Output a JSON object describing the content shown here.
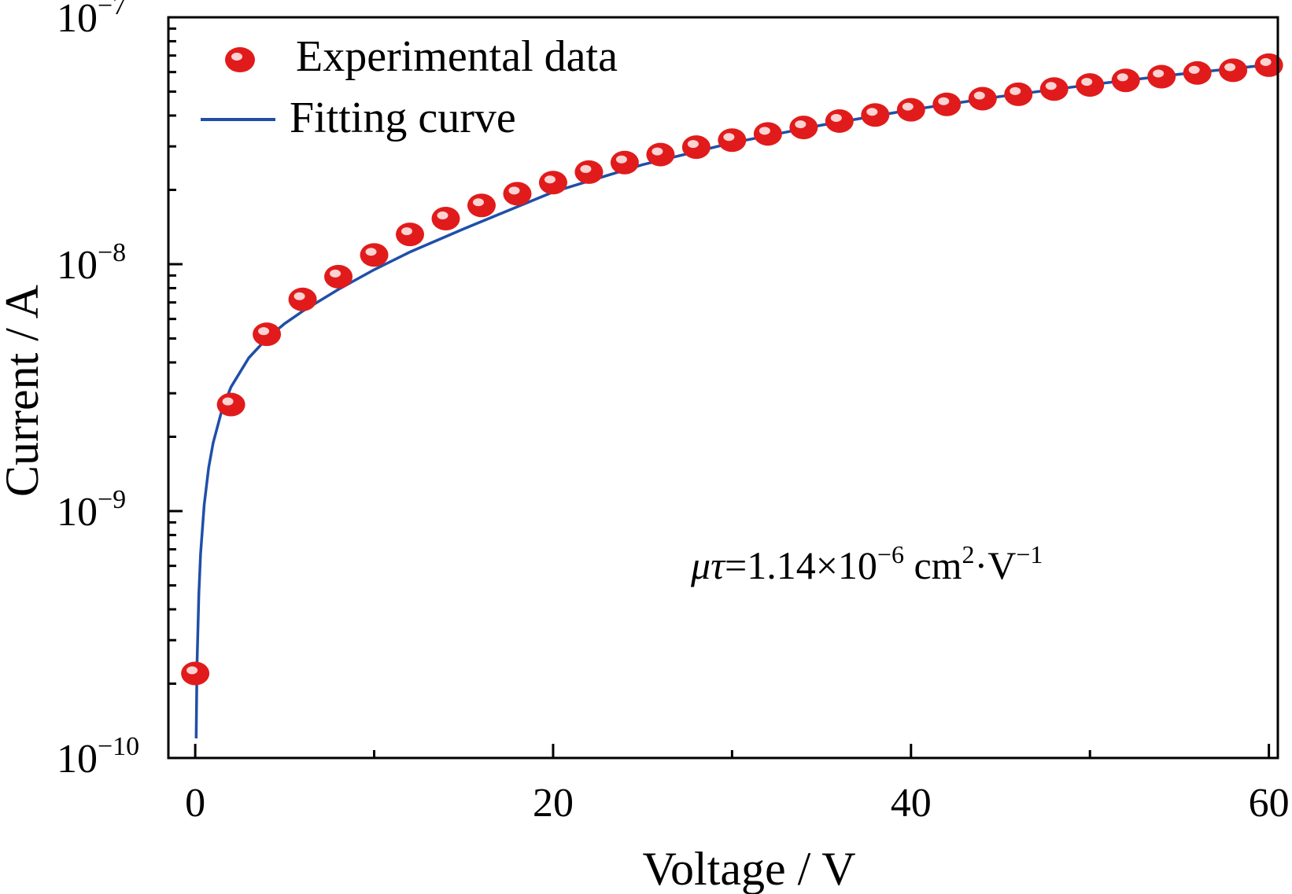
{
  "chart_data": {
    "type": "scatter",
    "title": "",
    "xlabel": "Voltage / V",
    "ylabel": "Current / A",
    "xlim": [
      -1.5,
      60.5
    ],
    "ylim": [
      1e-10,
      1e-07
    ],
    "yscale": "log",
    "grid": false,
    "legend_position": "top-left",
    "x_ticks": [
      {
        "value": 0,
        "label": "0"
      },
      {
        "value": 20,
        "label": "20"
      },
      {
        "value": 40,
        "label": "40"
      },
      {
        "value": 60,
        "label": "60"
      }
    ],
    "y_ticks": [
      {
        "value": 1e-10,
        "base": "10",
        "exp": "−10"
      },
      {
        "value": 1e-09,
        "base": "10",
        "exp": "−9"
      },
      {
        "value": 1e-08,
        "base": "10",
        "exp": "−8"
      },
      {
        "value": 1e-07,
        "base": "10",
        "exp": "−7"
      }
    ],
    "series": [
      {
        "name": "Experimental data",
        "kind": "markers",
        "color": "#e11b1b",
        "x": [
          0,
          2,
          4,
          6,
          8,
          10,
          12,
          14,
          16,
          18,
          20,
          22,
          24,
          26,
          28,
          30,
          32,
          34,
          36,
          38,
          40,
          42,
          44,
          46,
          48,
          50,
          52,
          54,
          56,
          58,
          60
        ],
        "y": [
          2.2e-10,
          2.7e-09,
          5.2e-09,
          7.2e-09,
          8.9e-09,
          1.09e-08,
          1.32e-08,
          1.53e-08,
          1.73e-08,
          1.93e-08,
          2.14e-08,
          2.36e-08,
          2.58e-08,
          2.78e-08,
          2.98e-08,
          3.18e-08,
          3.37e-08,
          3.58e-08,
          3.8e-08,
          4.02e-08,
          4.22e-08,
          4.44e-08,
          4.68e-08,
          4.88e-08,
          5.12e-08,
          5.32e-08,
          5.55e-08,
          5.75e-08,
          5.95e-08,
          6.1e-08,
          6.4e-08
        ]
      },
      {
        "name": "Fitting curve",
        "kind": "line",
        "color": "#1f4fa8",
        "x": [
          0.05,
          0.1,
          0.2,
          0.3,
          0.5,
          0.75,
          1,
          1.5,
          2,
          3,
          4,
          5,
          6,
          8,
          10,
          12,
          15,
          20,
          25,
          30,
          35,
          40,
          45,
          50,
          55,
          60
        ],
        "y": [
          1.2e-10,
          2.4e-10,
          4.6e-10,
          6.7e-10,
          1.06e-09,
          1.5e-09,
          1.89e-09,
          2.58e-09,
          3.18e-09,
          4.18e-09,
          5e-09,
          5.75e-09,
          6.45e-09,
          7.9e-09,
          9.5e-09,
          1.12e-08,
          1.39e-08,
          1.96e-08,
          2.53e-08,
          3.1e-08,
          3.66e-08,
          4.22e-08,
          4.78e-08,
          5.33e-08,
          5.88e-08,
          6.42e-08
        ]
      }
    ],
    "annotation": {
      "symbol": "μτ",
      "text": "=1.14×10",
      "exp1": "−6",
      "unit": " cm",
      "exp2": "2",
      "unit2": "·V",
      "exp3": "−1"
    }
  }
}
